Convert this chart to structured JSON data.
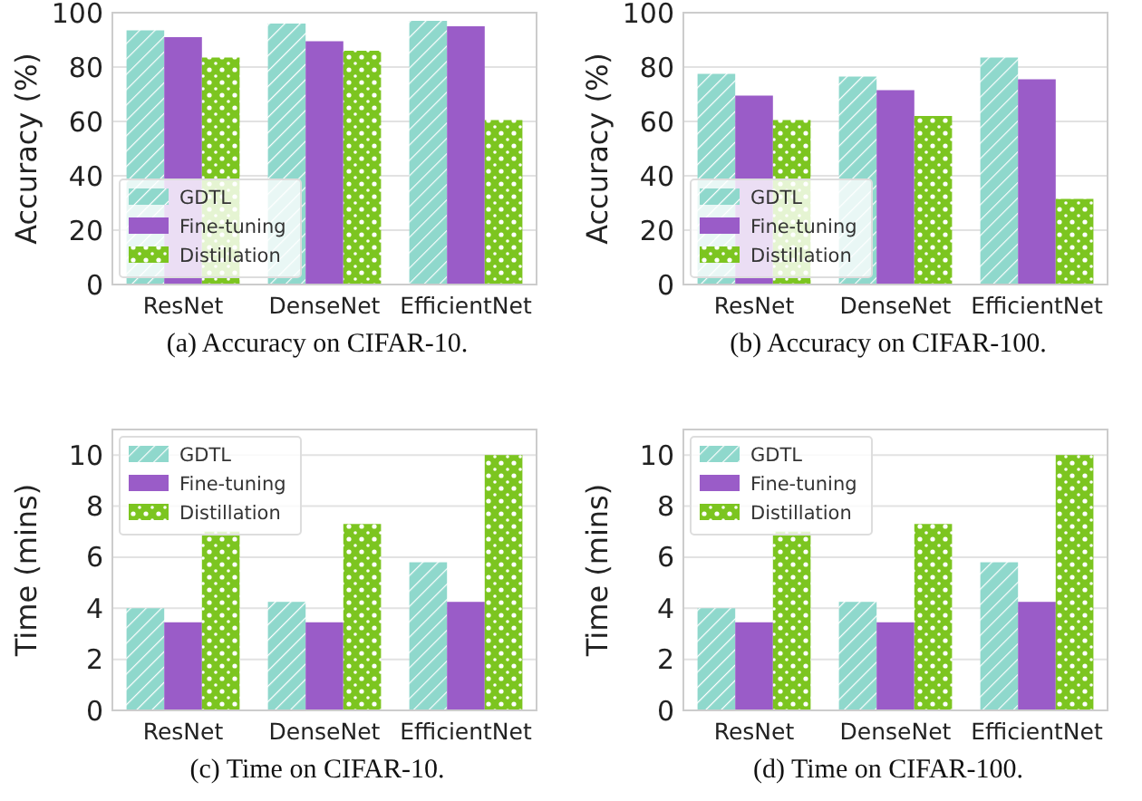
{
  "chart_data": [
    {
      "type": "bar",
      "title": "(a)  Accuracy on CIFAR-10.",
      "ylabel": "Accuracy (%)",
      "categories": [
        "ResNet",
        "DenseNet",
        "EfficientNet"
      ],
      "series": [
        {
          "name": "GDTL",
          "color": "#8fd8cc",
          "values": [
            93.5,
            96,
            97
          ]
        },
        {
          "name": "Fine-tuning",
          "color": "#9a5cc8",
          "values": [
            91,
            89.5,
            95
          ]
        },
        {
          "name": "Distillation",
          "color": "#7cc520",
          "values": [
            83.5,
            86,
            60.5
          ]
        }
      ],
      "ylim": [
        0,
        100
      ],
      "yticks": [
        0,
        20,
        40,
        60,
        80,
        100
      ],
      "grid": "y",
      "legend": "bottom left"
    },
    {
      "type": "bar",
      "title": "(b)  Accuracy on CIFAR-100.",
      "ylabel": "Accuracy (%)",
      "categories": [
        "ResNet",
        "DenseNet",
        "EfficientNet"
      ],
      "series": [
        {
          "name": "GDTL",
          "color": "#8fd8cc",
          "values": [
            77.5,
            76.5,
            83.5
          ]
        },
        {
          "name": "Fine-tuning",
          "color": "#9a5cc8",
          "values": [
            69.5,
            71.5,
            75.5
          ]
        },
        {
          "name": "Distillation",
          "color": "#7cc520",
          "values": [
            60.5,
            62,
            31.5
          ]
        }
      ],
      "ylim": [
        0,
        100
      ],
      "yticks": [
        0,
        20,
        40,
        60,
        80,
        100
      ],
      "grid": "y",
      "legend": "bottom left"
    },
    {
      "type": "bar",
      "title": "(c)  Time on CIFAR-10.",
      "ylabel": "Time (mins)",
      "categories": [
        "ResNet",
        "DenseNet",
        "EfficientNet"
      ],
      "series": [
        {
          "name": "GDTL",
          "color": "#8fd8cc",
          "values": [
            4.0,
            4.25,
            5.8
          ]
        },
        {
          "name": "Fine-tuning",
          "color": "#9a5cc8",
          "values": [
            3.45,
            3.45,
            4.25
          ]
        },
        {
          "name": "Distillation",
          "color": "#7cc520",
          "values": [
            7.0,
            7.3,
            10.0
          ]
        }
      ],
      "ylim": [
        0,
        11
      ],
      "yticks": [
        0,
        2,
        4,
        6,
        8,
        10
      ],
      "grid": "y",
      "legend": "top left"
    },
    {
      "type": "bar",
      "title": "(d)  Time on CIFAR-100.",
      "ylabel": "Time (mins)",
      "categories": [
        "ResNet",
        "DenseNet",
        "EfficientNet"
      ],
      "series": [
        {
          "name": "GDTL",
          "color": "#8fd8cc",
          "values": [
            4.0,
            4.25,
            5.8
          ]
        },
        {
          "name": "Fine-tuning",
          "color": "#9a5cc8",
          "values": [
            3.45,
            3.45,
            4.25
          ]
        },
        {
          "name": "Distillation",
          "color": "#7cc520",
          "values": [
            7.0,
            7.3,
            10.0
          ]
        }
      ],
      "ylim": [
        0,
        11
      ],
      "yticks": [
        0,
        2,
        4,
        6,
        8,
        10
      ],
      "grid": "y",
      "legend": "top left"
    }
  ]
}
